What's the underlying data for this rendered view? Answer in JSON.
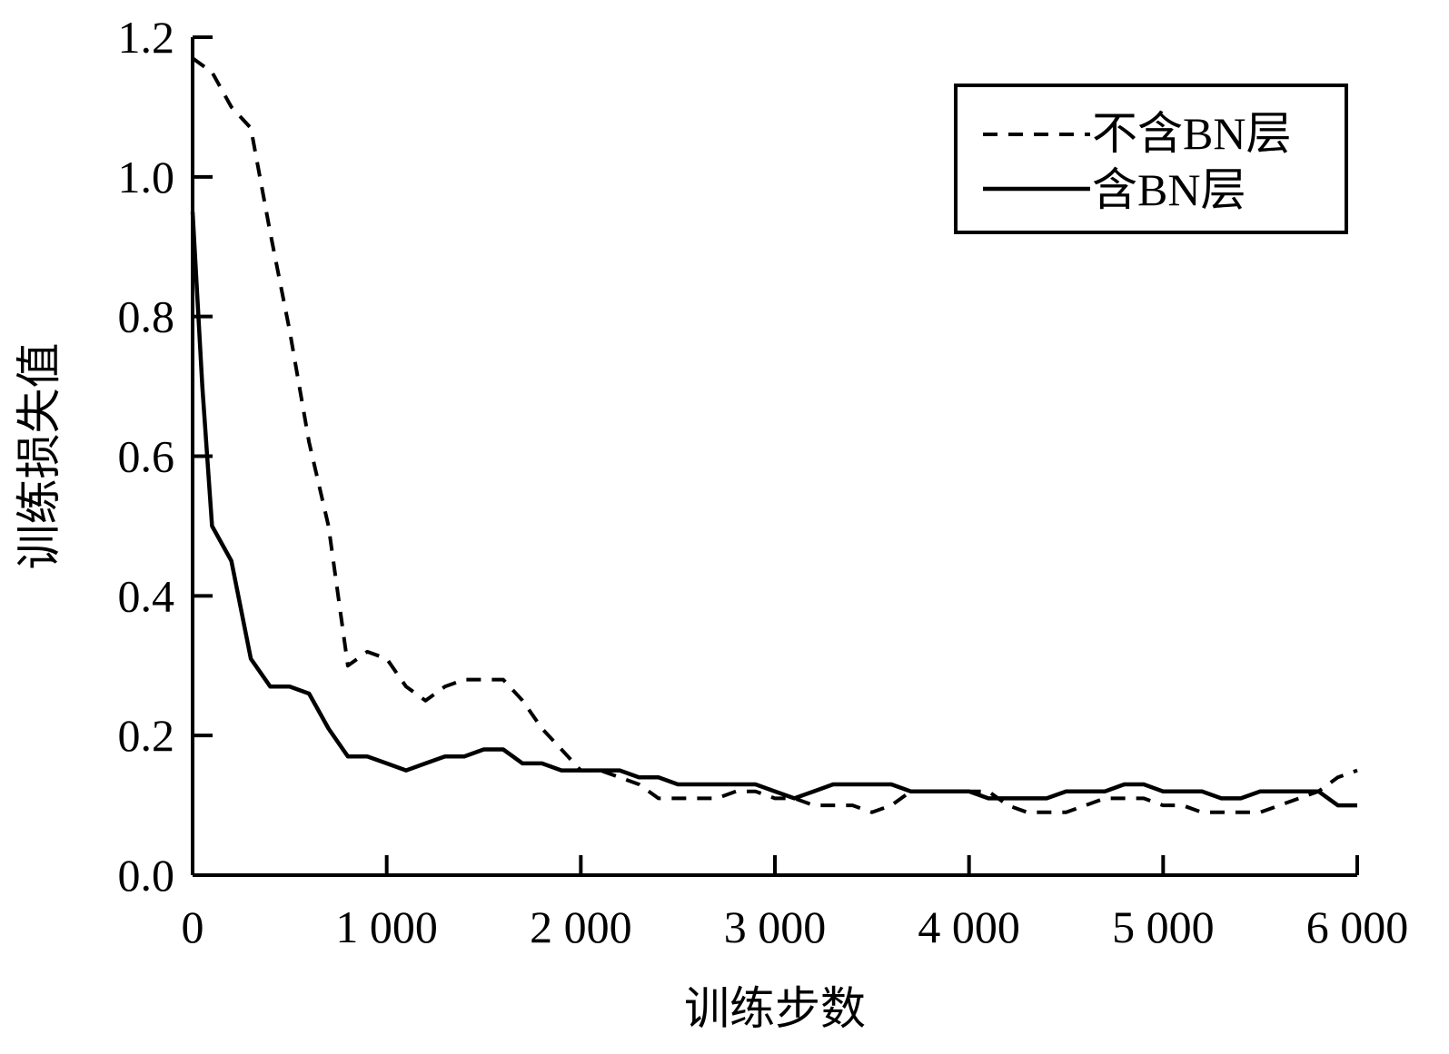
{
  "chart_data": {
    "type": "line",
    "title": "",
    "xlabel": "训练步数",
    "ylabel": "训练损失值",
    "xlim": [
      0,
      6000
    ],
    "ylim": [
      0.0,
      1.2
    ],
    "x_ticks": [
      0,
      1000,
      2000,
      3000,
      4000,
      5000,
      6000
    ],
    "x_tick_labels": [
      "0",
      "1 000",
      "2 000",
      "3 000",
      "4 000",
      "5 000",
      "6 000"
    ],
    "y_ticks": [
      0.0,
      0.2,
      0.4,
      0.6,
      0.8,
      1.0,
      1.2
    ],
    "y_tick_labels": [
      "0.0",
      "0.2",
      "0.4",
      "0.6",
      "0.8",
      "1.0",
      "1.2"
    ],
    "grid": false,
    "legend_position": "top-right",
    "series": [
      {
        "name": "不含BN层",
        "style": "dashed",
        "points": [
          [
            0,
            1.17
          ],
          [
            100,
            1.15
          ],
          [
            200,
            1.1
          ],
          [
            300,
            1.07
          ],
          [
            400,
            0.92
          ],
          [
            500,
            0.78
          ],
          [
            600,
            0.62
          ],
          [
            700,
            0.5
          ],
          [
            800,
            0.3
          ],
          [
            900,
            0.32
          ],
          [
            1000,
            0.31
          ],
          [
            1100,
            0.27
          ],
          [
            1200,
            0.25
          ],
          [
            1300,
            0.27
          ],
          [
            1400,
            0.28
          ],
          [
            1500,
            0.28
          ],
          [
            1600,
            0.28
          ],
          [
            1700,
            0.25
          ],
          [
            1800,
            0.21
          ],
          [
            1900,
            0.18
          ],
          [
            2000,
            0.15
          ],
          [
            2100,
            0.15
          ],
          [
            2200,
            0.14
          ],
          [
            2300,
            0.13
          ],
          [
            2400,
            0.11
          ],
          [
            2500,
            0.11
          ],
          [
            2600,
            0.11
          ],
          [
            2700,
            0.11
          ],
          [
            2800,
            0.12
          ],
          [
            2900,
            0.12
          ],
          [
            3000,
            0.11
          ],
          [
            3100,
            0.11
          ],
          [
            3200,
            0.1
          ],
          [
            3300,
            0.1
          ],
          [
            3400,
            0.1
          ],
          [
            3500,
            0.09
          ],
          [
            3600,
            0.1
          ],
          [
            3700,
            0.12
          ],
          [
            3800,
            0.12
          ],
          [
            3900,
            0.12
          ],
          [
            4000,
            0.12
          ],
          [
            4100,
            0.12
          ],
          [
            4200,
            0.1
          ],
          [
            4300,
            0.09
          ],
          [
            4400,
            0.09
          ],
          [
            4500,
            0.09
          ],
          [
            4600,
            0.1
          ],
          [
            4700,
            0.11
          ],
          [
            4800,
            0.11
          ],
          [
            4900,
            0.11
          ],
          [
            5000,
            0.1
          ],
          [
            5100,
            0.1
          ],
          [
            5200,
            0.09
          ],
          [
            5300,
            0.09
          ],
          [
            5400,
            0.09
          ],
          [
            5500,
            0.09
          ],
          [
            5600,
            0.1
          ],
          [
            5700,
            0.11
          ],
          [
            5800,
            0.12
          ],
          [
            5900,
            0.14
          ],
          [
            6000,
            0.15
          ]
        ]
      },
      {
        "name": "含BN层",
        "style": "solid",
        "points": [
          [
            0,
            0.95
          ],
          [
            50,
            0.7
          ],
          [
            100,
            0.5
          ],
          [
            200,
            0.45
          ],
          [
            300,
            0.31
          ],
          [
            400,
            0.27
          ],
          [
            500,
            0.27
          ],
          [
            600,
            0.26
          ],
          [
            700,
            0.21
          ],
          [
            800,
            0.17
          ],
          [
            900,
            0.17
          ],
          [
            1000,
            0.16
          ],
          [
            1100,
            0.15
          ],
          [
            1200,
            0.16
          ],
          [
            1300,
            0.17
          ],
          [
            1400,
            0.17
          ],
          [
            1500,
            0.18
          ],
          [
            1600,
            0.18
          ],
          [
            1700,
            0.16
          ],
          [
            1800,
            0.16
          ],
          [
            1900,
            0.15
          ],
          [
            2000,
            0.15
          ],
          [
            2100,
            0.15
          ],
          [
            2200,
            0.15
          ],
          [
            2300,
            0.14
          ],
          [
            2400,
            0.14
          ],
          [
            2500,
            0.13
          ],
          [
            2600,
            0.13
          ],
          [
            2700,
            0.13
          ],
          [
            2800,
            0.13
          ],
          [
            2900,
            0.13
          ],
          [
            3000,
            0.12
          ],
          [
            3100,
            0.11
          ],
          [
            3200,
            0.12
          ],
          [
            3300,
            0.13
          ],
          [
            3400,
            0.13
          ],
          [
            3500,
            0.13
          ],
          [
            3600,
            0.13
          ],
          [
            3700,
            0.12
          ],
          [
            3800,
            0.12
          ],
          [
            3900,
            0.12
          ],
          [
            4000,
            0.12
          ],
          [
            4100,
            0.11
          ],
          [
            4200,
            0.11
          ],
          [
            4300,
            0.11
          ],
          [
            4400,
            0.11
          ],
          [
            4500,
            0.12
          ],
          [
            4600,
            0.12
          ],
          [
            4700,
            0.12
          ],
          [
            4800,
            0.13
          ],
          [
            4900,
            0.13
          ],
          [
            5000,
            0.12
          ],
          [
            5100,
            0.12
          ],
          [
            5200,
            0.12
          ],
          [
            5300,
            0.11
          ],
          [
            5400,
            0.11
          ],
          [
            5500,
            0.12
          ],
          [
            5600,
            0.12
          ],
          [
            5700,
            0.12
          ],
          [
            5800,
            0.12
          ],
          [
            5900,
            0.1
          ],
          [
            6000,
            0.1
          ]
        ]
      }
    ]
  }
}
